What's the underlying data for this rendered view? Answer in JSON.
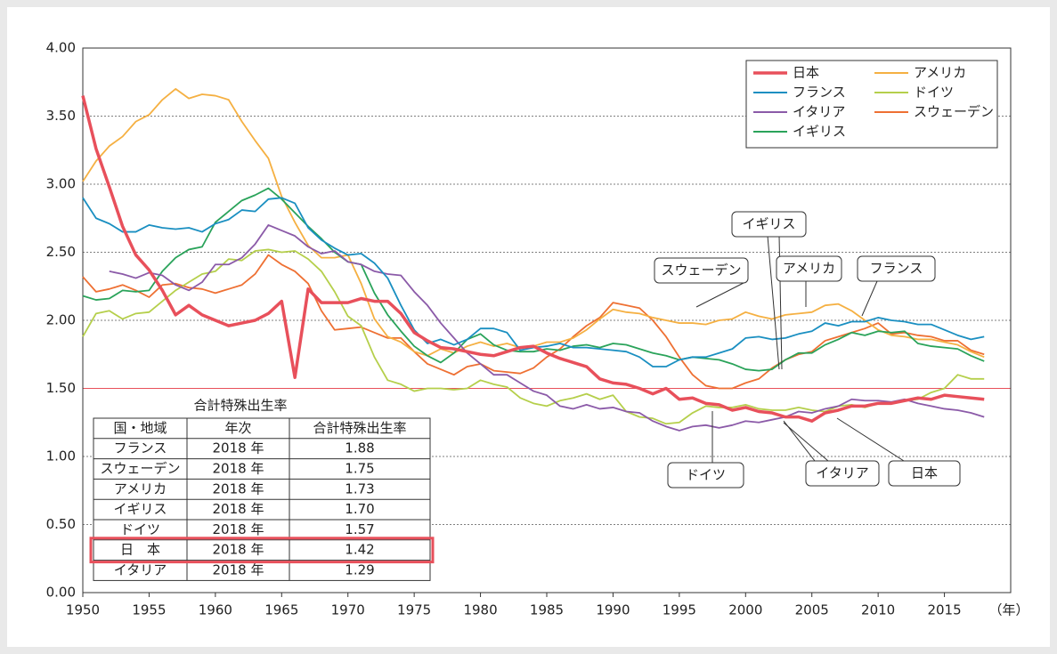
{
  "chart_data": {
    "type": "line",
    "x_label": "（年）",
    "x": [
      1950,
      1951,
      1952,
      1953,
      1954,
      1955,
      1956,
      1957,
      1958,
      1959,
      1960,
      1961,
      1962,
      1963,
      1964,
      1965,
      1966,
      1967,
      1968,
      1969,
      1970,
      1971,
      1972,
      1973,
      1974,
      1975,
      1976,
      1977,
      1978,
      1979,
      1980,
      1981,
      1982,
      1983,
      1984,
      1985,
      1986,
      1987,
      1988,
      1989,
      1990,
      1991,
      1992,
      1993,
      1994,
      1995,
      1996,
      1997,
      1998,
      1999,
      2000,
      2001,
      2002,
      2003,
      2004,
      2005,
      2006,
      2007,
      2008,
      2009,
      2010,
      2011,
      2012,
      2013,
      2014,
      2015,
      2016,
      2017,
      2018
    ],
    "xlim": [
      1950,
      2020
    ],
    "xticks": [
      1950,
      1955,
      1960,
      1965,
      1970,
      1975,
      1980,
      1985,
      1990,
      1995,
      2000,
      2005,
      2010,
      2015
    ],
    "ylim": [
      0,
      4
    ],
    "yticks": [
      {
        "value": 0,
        "label": "0.00"
      },
      {
        "value": 0.5,
        "label": "0.50"
      },
      {
        "value": 1,
        "label": "1.00"
      },
      {
        "value": 1.5,
        "label": "1.50"
      },
      {
        "value": 2,
        "label": "2.00"
      },
      {
        "value": 2.5,
        "label": "2.50"
      },
      {
        "value": 3,
        "label": "3.00"
      },
      {
        "value": 3.5,
        "label": "3.50"
      },
      {
        "value": 4,
        "label": "4.00"
      }
    ],
    "grid": true,
    "reference_line": {
      "value": 1.5,
      "color": "#e8505b"
    },
    "legend": "upper right",
    "series": [
      {
        "name": "日本",
        "color": "#e8505b",
        "values": [
          3.65,
          3.26,
          2.98,
          2.69,
          2.48,
          2.37,
          2.22,
          2.04,
          2.11,
          2.04,
          2.0,
          1.96,
          1.98,
          2.0,
          2.05,
          2.14,
          1.58,
          2.23,
          2.13,
          2.13,
          2.13,
          2.16,
          2.14,
          2.14,
          2.05,
          1.91,
          1.85,
          1.8,
          1.79,
          1.77,
          1.75,
          1.74,
          1.77,
          1.8,
          1.81,
          1.76,
          1.72,
          1.69,
          1.66,
          1.57,
          1.54,
          1.53,
          1.5,
          1.46,
          1.5,
          1.42,
          1.43,
          1.39,
          1.38,
          1.34,
          1.36,
          1.33,
          1.32,
          1.29,
          1.29,
          1.26,
          1.32,
          1.34,
          1.37,
          1.37,
          1.39,
          1.39,
          1.41,
          1.43,
          1.42,
          1.45,
          1.44,
          1.43,
          1.42
        ]
      },
      {
        "name": "フランス",
        "color": "#1a8fc1",
        "values": [
          2.9,
          2.75,
          2.71,
          2.65,
          2.65,
          2.7,
          2.68,
          2.67,
          2.68,
          2.65,
          2.71,
          2.74,
          2.81,
          2.8,
          2.89,
          2.9,
          2.86,
          2.68,
          2.59,
          2.53,
          2.48,
          2.49,
          2.42,
          2.31,
          2.11,
          1.93,
          1.83,
          1.86,
          1.82,
          1.86,
          1.94,
          1.94,
          1.91,
          1.78,
          1.8,
          1.81,
          1.83,
          1.8,
          1.8,
          1.79,
          1.78,
          1.77,
          1.73,
          1.66,
          1.66,
          1.71,
          1.73,
          1.73,
          1.76,
          1.79,
          1.87,
          1.88,
          1.86,
          1.87,
          1.9,
          1.92,
          1.98,
          1.96,
          1.99,
          1.99,
          2.02,
          2.0,
          1.99,
          1.97,
          1.97,
          1.93,
          1.89,
          1.86,
          1.88
        ]
      },
      {
        "name": "イタリア",
        "color": "#8b5aa8",
        "values": [
          null,
          null,
          2.36,
          2.34,
          2.31,
          2.35,
          2.33,
          2.26,
          2.22,
          2.28,
          2.41,
          2.41,
          2.46,
          2.56,
          2.7,
          2.66,
          2.62,
          2.54,
          2.49,
          2.51,
          2.43,
          2.41,
          2.36,
          2.34,
          2.33,
          2.21,
          2.11,
          1.98,
          1.87,
          1.76,
          1.68,
          1.6,
          1.6,
          1.54,
          1.48,
          1.45,
          1.37,
          1.35,
          1.38,
          1.35,
          1.36,
          1.33,
          1.32,
          1.26,
          1.22,
          1.19,
          1.22,
          1.23,
          1.21,
          1.23,
          1.26,
          1.25,
          1.27,
          1.29,
          1.33,
          1.32,
          1.35,
          1.37,
          1.42,
          1.41,
          1.41,
          1.4,
          1.42,
          1.39,
          1.37,
          1.35,
          1.34,
          1.32,
          1.29
        ]
      },
      {
        "name": "イギリス",
        "color": "#2aa35a",
        "values": [
          2.18,
          2.15,
          2.16,
          2.22,
          2.21,
          2.22,
          2.36,
          2.46,
          2.52,
          2.54,
          2.72,
          2.8,
          2.88,
          2.92,
          2.97,
          2.89,
          2.79,
          2.69,
          2.6,
          2.5,
          2.43,
          2.41,
          2.2,
          2.04,
          1.92,
          1.81,
          1.74,
          1.69,
          1.76,
          1.86,
          1.9,
          1.82,
          1.78,
          1.77,
          1.77,
          1.79,
          1.78,
          1.81,
          1.82,
          1.8,
          1.83,
          1.82,
          1.79,
          1.76,
          1.74,
          1.71,
          1.73,
          1.72,
          1.71,
          1.68,
          1.64,
          1.63,
          1.64,
          1.71,
          1.76,
          1.76,
          1.82,
          1.86,
          1.91,
          1.89,
          1.92,
          1.91,
          1.92,
          1.83,
          1.81,
          1.8,
          1.79,
          1.74,
          1.7
        ]
      },
      {
        "name": "アメリカ",
        "color": "#f5b042",
        "values": [
          3.02,
          3.17,
          3.28,
          3.35,
          3.46,
          3.51,
          3.62,
          3.7,
          3.63,
          3.66,
          3.65,
          3.62,
          3.46,
          3.32,
          3.19,
          2.91,
          2.72,
          2.55,
          2.46,
          2.46,
          2.48,
          2.27,
          2.01,
          1.88,
          1.84,
          1.77,
          1.74,
          1.79,
          1.76,
          1.81,
          1.84,
          1.81,
          1.83,
          1.8,
          1.81,
          1.84,
          1.84,
          1.87,
          1.93,
          2.01,
          2.08,
          2.06,
          2.05,
          2.02,
          2.0,
          1.98,
          1.98,
          1.97,
          2.0,
          2.01,
          2.06,
          2.03,
          2.01,
          2.04,
          2.05,
          2.06,
          2.11,
          2.12,
          2.07,
          2.0,
          1.93,
          1.89,
          1.88,
          1.86,
          1.86,
          1.84,
          1.82,
          1.77,
          1.73
        ]
      },
      {
        "name": "ドイツ",
        "color": "#b5cf4b",
        "values": [
          1.88,
          2.05,
          2.07,
          2.01,
          2.05,
          2.06,
          2.14,
          2.22,
          2.28,
          2.34,
          2.36,
          2.45,
          2.44,
          2.51,
          2.52,
          2.5,
          2.51,
          2.45,
          2.36,
          2.21,
          2.03,
          1.96,
          1.73,
          1.56,
          1.53,
          1.48,
          1.5,
          1.5,
          1.49,
          1.5,
          1.56,
          1.53,
          1.51,
          1.43,
          1.39,
          1.37,
          1.41,
          1.43,
          1.46,
          1.42,
          1.45,
          1.33,
          1.29,
          1.28,
          1.24,
          1.25,
          1.32,
          1.37,
          1.36,
          1.36,
          1.38,
          1.35,
          1.34,
          1.34,
          1.36,
          1.34,
          1.33,
          1.37,
          1.38,
          1.36,
          1.39,
          1.39,
          1.41,
          1.42,
          1.47,
          1.5,
          1.6,
          1.57,
          1.57
        ]
      },
      {
        "name": "スウェーデン",
        "color": "#ee7033",
        "values": [
          2.32,
          2.21,
          2.23,
          2.26,
          2.22,
          2.17,
          2.26,
          2.27,
          2.24,
          2.23,
          2.2,
          2.23,
          2.26,
          2.34,
          2.48,
          2.41,
          2.36,
          2.27,
          2.07,
          1.93,
          1.94,
          1.95,
          1.91,
          1.87,
          1.87,
          1.77,
          1.68,
          1.64,
          1.6,
          1.66,
          1.68,
          1.63,
          1.62,
          1.61,
          1.65,
          1.73,
          1.79,
          1.88,
          1.96,
          2.02,
          2.13,
          2.11,
          2.09,
          2.0,
          1.88,
          1.73,
          1.6,
          1.52,
          1.5,
          1.5,
          1.54,
          1.57,
          1.65,
          1.71,
          1.75,
          1.77,
          1.85,
          1.88,
          1.91,
          1.94,
          1.98,
          1.9,
          1.91,
          1.89,
          1.88,
          1.85,
          1.85,
          1.78,
          1.75
        ]
      }
    ],
    "annotations": [
      "スウェーデン",
      "イギリス",
      "アメリカ",
      "フランス",
      "ドイツ",
      "イタリア",
      "日本"
    ]
  },
  "table": {
    "title": "合計特殊出生率",
    "header": [
      "国・地域",
      "年次",
      "合計特殊出生率"
    ],
    "highlight_row": 5,
    "rows": [
      [
        "フランス",
        "2018 年",
        "1.88"
      ],
      [
        "スウェーデン",
        "2018 年",
        "1.75"
      ],
      [
        "アメリカ",
        "2018 年",
        "1.73"
      ],
      [
        "イギリス",
        "2018 年",
        "1.70"
      ],
      [
        "ドイツ",
        "2018 年",
        "1.57"
      ],
      [
        "日　本",
        "2018 年",
        "1.42"
      ],
      [
        "イタリア",
        "2018 年",
        "1.29"
      ]
    ]
  }
}
